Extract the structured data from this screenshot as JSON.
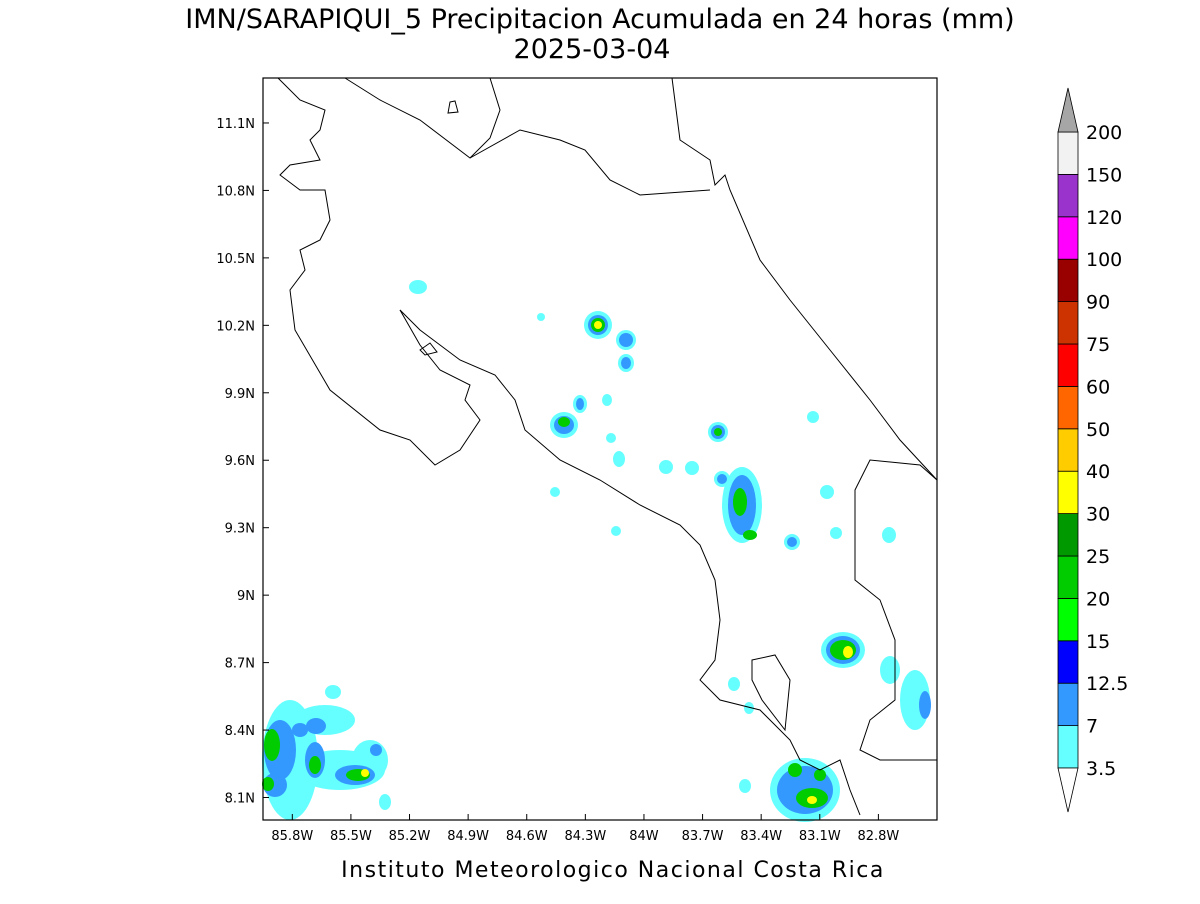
{
  "map": {
    "title": "IMN/SARAPIQUI_5 Precipitacion Acumulada en 24 horas (mm)",
    "subtitle": "2025-03-04",
    "footer": "Instituto Meteorologico Nacional Costa Rica",
    "lonlim": [
      -85.95,
      -82.5
    ],
    "latlim": [
      8.0,
      11.3
    ],
    "grid": true,
    "xticks": [
      {
        "value": -85.8,
        "label": "85.8W"
      },
      {
        "value": -85.5,
        "label": "85.5W"
      },
      {
        "value": -85.2,
        "label": "85.2W"
      },
      {
        "value": -84.9,
        "label": "84.9W"
      },
      {
        "value": -84.6,
        "label": "84.6W"
      },
      {
        "value": -84.3,
        "label": "84.3W"
      },
      {
        "value": -84,
        "label": "84W"
      },
      {
        "value": -83.7,
        "label": "83.7W"
      },
      {
        "value": -83.4,
        "label": "83.4W"
      },
      {
        "value": -83.1,
        "label": "83.1W"
      },
      {
        "value": -82.8,
        "label": "82.8W"
      }
    ],
    "yticks": [
      {
        "value": 8.1,
        "label": "8.1N"
      },
      {
        "value": 8.4,
        "label": "8.4N"
      },
      {
        "value": 8.7,
        "label": "8.7N"
      },
      {
        "value": 9,
        "label": "9N"
      },
      {
        "value": 9.3,
        "label": "9.3N"
      },
      {
        "value": 9.6,
        "label": "9.6N"
      },
      {
        "value": 9.9,
        "label": "9.9N"
      },
      {
        "value": 10.2,
        "label": "10.2N"
      },
      {
        "value": 10.5,
        "label": "10.5N"
      },
      {
        "value": 10.8,
        "label": "10.8N"
      },
      {
        "value": 11.1,
        "label": "11.1N"
      }
    ],
    "colorbar": {
      "levels": [
        3.5,
        7,
        12.5,
        15,
        20,
        25,
        30,
        40,
        50,
        60,
        75,
        90,
        100,
        120,
        150,
        200
      ],
      "colors": [
        "#66ffff",
        "#3399ff",
        "#0000ff",
        "#00ff00",
        "#00cc00",
        "#009900",
        "#ffff00",
        "#ffcc00",
        "#ff6600",
        "#ff0000",
        "#cc3300",
        "#990000",
        "#ff00ff",
        "#9933cc",
        "#f2f2f2"
      ],
      "over_color": "#a6a6a6",
      "under_color": "#ffffff"
    }
  }
}
